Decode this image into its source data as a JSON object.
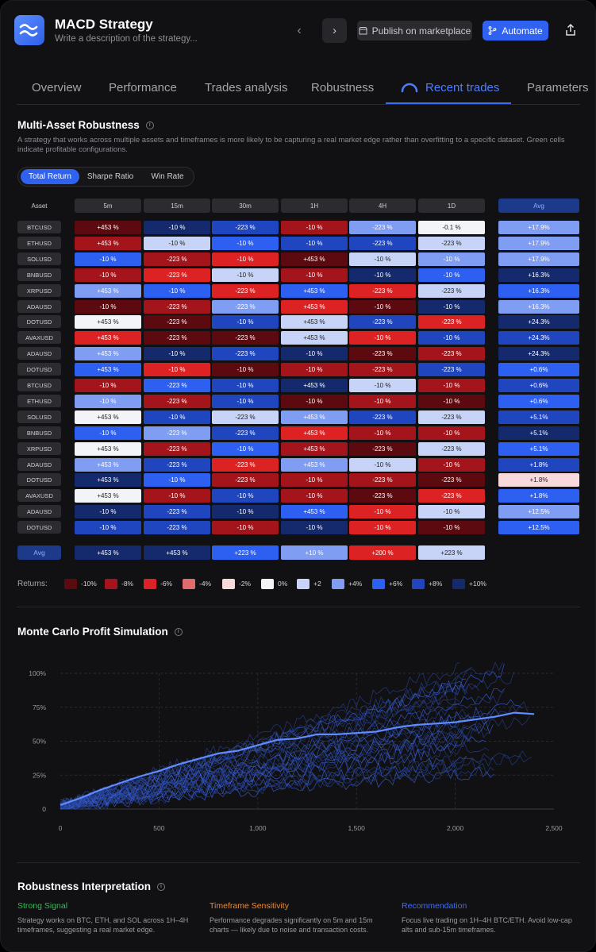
{
  "header": {
    "title": "MACD Strategy",
    "subtitle": "Write a description of the strategy...",
    "publish_label": "Publish on marketplace",
    "automate_label": "Automate"
  },
  "tabs": [
    "Overview",
    "Performance",
    "Trades analysis",
    "Robustness",
    "Recent trades",
    "Parameters"
  ],
  "active_tab": "Recent trades",
  "robustness": {
    "title": "Multi-Asset Robustness",
    "description": "A strategy that works across multiple assets and timeframes is more likely to be capturing a real market edge rather than overfitting to a specific dataset. Green cells indicate profitable configurations.",
    "metrics": [
      "Total Return",
      "Sharpe Ratio",
      "Win Rate"
    ],
    "active_metric": "Total Return",
    "asset_header": "Asset",
    "avg_header": "Avg",
    "timeframes": [
      "5m",
      "15m",
      "30m",
      "1H",
      "4H",
      "1D"
    ],
    "rows": [
      {
        "asset": "BTCUSD",
        "values": [
          "+453 %",
          "-10 %",
          "-223 %",
          "-10 %",
          "-223 %",
          "-0.1 %"
        ],
        "levels": [
          "-10",
          "+10",
          "+8",
          "-8",
          "+4",
          "0"
        ],
        "avg": "+17.9%",
        "avg_level": "+4"
      },
      {
        "asset": "ETHUSD",
        "values": [
          "+453 %",
          "-10 %",
          "-10 %",
          "-10 %",
          "-223 %",
          "-223 %"
        ],
        "levels": [
          "-8",
          "+2",
          "+6",
          "+8",
          "+8",
          "+2"
        ],
        "avg": "+17.9%",
        "avg_level": "+4"
      },
      {
        "asset": "SOLUSD",
        "values": [
          "-10 %",
          "-223 %",
          "-10 %",
          "+453 %",
          "-10 %",
          "-10 %"
        ],
        "levels": [
          "+6",
          "-8",
          "-6",
          "-10",
          "+2",
          "+4"
        ],
        "avg": "+17.9%",
        "avg_level": "+4"
      },
      {
        "asset": "BNBUSD",
        "values": [
          "-10 %",
          "-223 %",
          "-10 %",
          "-10 %",
          "-10 %",
          "-10 %"
        ],
        "levels": [
          "-8",
          "-6",
          "+2",
          "-8",
          "+10",
          "+6"
        ],
        "avg": "+16.3%",
        "avg_level": "+10"
      },
      {
        "asset": "XRPUSD",
        "values": [
          "+453 %",
          "-10 %",
          "-223 %",
          "+453 %",
          "-223 %",
          "-223 %"
        ],
        "levels": [
          "+4",
          "+6",
          "-6",
          "+6",
          "-6",
          "+2"
        ],
        "avg": "+16.3%",
        "avg_level": "+6"
      },
      {
        "asset": "ADAUSD",
        "values": [
          "-10 %",
          "-223 %",
          "-223 %",
          "+453 %",
          "-10 %",
          "-10 %"
        ],
        "levels": [
          "-10",
          "-8",
          "+4",
          "-6",
          "-10",
          "+10"
        ],
        "avg": "+16.3%",
        "avg_level": "+4"
      },
      {
        "asset": "DOTUSD",
        "values": [
          "+453 %",
          "-223 %",
          "-10 %",
          "+453 %",
          "-223 %",
          "-223 %"
        ],
        "levels": [
          "0",
          "-10",
          "+8",
          "+2",
          "+8",
          "-6"
        ],
        "avg": "+24.3%",
        "avg_level": "+10"
      },
      {
        "asset": "AVAXUSD",
        "values": [
          "+453 %",
          "-223 %",
          "-223 %",
          "+453 %",
          "-10 %",
          "-10 %"
        ],
        "levels": [
          "-6",
          "-10",
          "-10",
          "+2",
          "-6",
          "+8"
        ],
        "avg": "+24.3%",
        "avg_level": "+8"
      },
      {
        "asset": "ADAUSD",
        "values": [
          "+453 %",
          "-10 %",
          "-223 %",
          "-10 %",
          "-223 %",
          "-223 %"
        ],
        "levels": [
          "+4",
          "+10",
          "+8",
          "+10",
          "-10",
          "-8"
        ],
        "avg": "+24.3%",
        "avg_level": "+10"
      },
      {
        "asset": "DOTUSD",
        "values": [
          "+453 %",
          "-10 %",
          "-10 %",
          "-10 %",
          "-223 %",
          "-223 %"
        ],
        "levels": [
          "+6",
          "-6",
          "-10",
          "-8",
          "-8",
          "+8"
        ],
        "avg": "+0.6%",
        "avg_level": "+6"
      },
      {
        "asset": "BTCUSD",
        "values": [
          "-10 %",
          "-223 %",
          "-10 %",
          "+453 %",
          "-10 %",
          "-10 %"
        ],
        "levels": [
          "-8",
          "+6",
          "+8",
          "+10",
          "+2",
          "-8"
        ],
        "avg": "+0.6%",
        "avg_level": "+8"
      },
      {
        "asset": "ETHUSD",
        "values": [
          "-10 %",
          "-223 %",
          "-10 %",
          "-10 %",
          "-10 %",
          "-10 %"
        ],
        "levels": [
          "+4",
          "-8",
          "+8",
          "-10",
          "-8",
          "-10"
        ],
        "avg": "+0.6%",
        "avg_level": "+6"
      },
      {
        "asset": "SOLUSD",
        "values": [
          "+453 %",
          "-10 %",
          "-223 %",
          "+453 %",
          "-223 %",
          "-223 %"
        ],
        "levels": [
          "0",
          "+8",
          "+2",
          "+4",
          "+8",
          "+2"
        ],
        "avg": "+5.1%",
        "avg_level": "+8"
      },
      {
        "asset": "BNBUSD",
        "values": [
          "-10 %",
          "-223 %",
          "-223 %",
          "+453 %",
          "-10 %",
          "-10 %"
        ],
        "levels": [
          "+6",
          "+4",
          "+8",
          "-6",
          "-8",
          "-8"
        ],
        "avg": "+5.1%",
        "avg_level": "+10"
      },
      {
        "asset": "XRPUSD",
        "values": [
          "+453 %",
          "-223 %",
          "-10 %",
          "+453 %",
          "-223 %",
          "-223 %"
        ],
        "levels": [
          "0",
          "-8",
          "+6",
          "-8",
          "-10",
          "+2"
        ],
        "avg": "+5.1%",
        "avg_level": "+6"
      },
      {
        "asset": "ADAUSD",
        "values": [
          "+453 %",
          "-223 %",
          "-223 %",
          "+453 %",
          "-10 %",
          "-10 %"
        ],
        "levels": [
          "+4",
          "+8",
          "-6",
          "+4",
          "+2",
          "-8"
        ],
        "avg": "+1.8%",
        "avg_level": "+8"
      },
      {
        "asset": "DOTUSD",
        "values": [
          "+453 %",
          "-10 %",
          "-223 %",
          "-10 %",
          "-223 %",
          "-223 %"
        ],
        "levels": [
          "+10",
          "+6",
          "-8",
          "-8",
          "-8",
          "-10"
        ],
        "avg": "+1.8%",
        "avg_level": "-2"
      },
      {
        "asset": "AVAXUSD",
        "values": [
          "+453 %",
          "-10 %",
          "-10 %",
          "-10 %",
          "-223 %",
          "-223 %"
        ],
        "levels": [
          "0",
          "-8",
          "+8",
          "-8",
          "-10",
          "-6"
        ],
        "avg": "+1.8%",
        "avg_level": "+6"
      },
      {
        "asset": "ADAUSD",
        "values": [
          "-10 %",
          "-223 %",
          "-10 %",
          "+453 %",
          "-10 %",
          "-10 %"
        ],
        "levels": [
          "+10",
          "+8",
          "+10",
          "+6",
          "-6",
          "+2"
        ],
        "avg": "+12.5%",
        "avg_level": "+4"
      },
      {
        "asset": "DOTUSD",
        "values": [
          "-10 %",
          "-223 %",
          "-10 %",
          "-10 %",
          "-10 %",
          "-10 %"
        ],
        "levels": [
          "+8",
          "+8",
          "-8",
          "+10",
          "-6",
          "-10"
        ],
        "avg": "+12.5%",
        "avg_level": "+6"
      }
    ],
    "avg_row_label": "Avg",
    "avg_row": [
      {
        "value": "+453 %",
        "level": "+10"
      },
      {
        "value": "+453 %",
        "level": "+10"
      },
      {
        "value": "+223 %",
        "level": "+6"
      },
      {
        "value": "+10 %",
        "level": "+4"
      },
      {
        "value": "+200 %",
        "level": "-6"
      },
      {
        "value": "+223 %",
        "level": "+2"
      }
    ],
    "legend_title": "Returns:",
    "legend": [
      {
        "label": "-10%",
        "level": "-10"
      },
      {
        "label": "-8%",
        "level": "-8"
      },
      {
        "label": "-6%",
        "level": "-6"
      },
      {
        "label": "-4%",
        "level": "-4"
      },
      {
        "label": "-2%",
        "level": "-2"
      },
      {
        "label": "0%",
        "level": "0"
      },
      {
        "label": "+2",
        "level": "+2"
      },
      {
        "label": "+4%",
        "level": "+4"
      },
      {
        "label": "+6%",
        "level": "+6"
      },
      {
        "label": "+8%",
        "level": "+8"
      },
      {
        "label": "+10%",
        "level": "+10"
      }
    ],
    "colors": {
      "-10": "#5c0a0f",
      "-8": "#a3141b",
      "-6": "#dc2223",
      "-4": "#e36b6f",
      "-2": "#f8d9dc",
      "0": "#f3f4f8",
      "+2": "#c7d4f7",
      "+4": "#7f9df2",
      "+6": "#2d5ff0",
      "+8": "#1f45bf",
      "+10": "#142a6c"
    }
  },
  "monte_carlo": {
    "title": "Monte Carlo Profit Simulation",
    "chart_data": {
      "type": "line",
      "title": "Monte Carlo Profit Simulation",
      "xlim": [
        0,
        2500
      ],
      "ylim": [
        0,
        100
      ],
      "xticks": [
        "0",
        "500",
        "1,000",
        "1,500",
        "2,000",
        "2,500"
      ],
      "xtick_values": [
        0,
        500,
        1000,
        1500,
        2000,
        2500
      ],
      "yticks": [
        "0",
        "25%",
        "50%",
        "75%",
        "100%"
      ],
      "ytick_values": [
        0,
        25,
        50,
        75,
        100
      ],
      "median_series": {
        "name": "median",
        "x": [
          0,
          100,
          200,
          300,
          400,
          500,
          600,
          700,
          800,
          900,
          1000,
          1100,
          1200,
          1300,
          1400,
          1500,
          1600,
          1700,
          1800,
          1900,
          2000,
          2100,
          2200,
          2300,
          2400
        ],
        "y": [
          3,
          8,
          14,
          19,
          24,
          28,
          33,
          37,
          41,
          43,
          47,
          51,
          52,
          55,
          55,
          56,
          57,
          60,
          62,
          63,
          64,
          66,
          68,
          71,
          70
        ]
      },
      "simulation_count": 30,
      "simulation_final_range": [
        28,
        108
      ]
    }
  },
  "interpretation": {
    "title": "Robustness Interpretation",
    "items": [
      {
        "heading": "Strong Signal",
        "text": "Strategy works on BTC, ETH, and SOL across 1H–4H timeframes, suggesting a real market edge.",
        "color": "#27c24c"
      },
      {
        "heading": "Timeframe Sensitivity",
        "text": "Performance degrades significantly on 5m and 15m charts — likely due to noise and transaction costs.",
        "color": "#f08a2e"
      },
      {
        "heading": "Recommendation",
        "text": "Focus live trading on 1H–4H BTC/ETH. Avoid low-cap alts and sub-15m timeframes.",
        "color": "#3f6df5"
      }
    ]
  }
}
